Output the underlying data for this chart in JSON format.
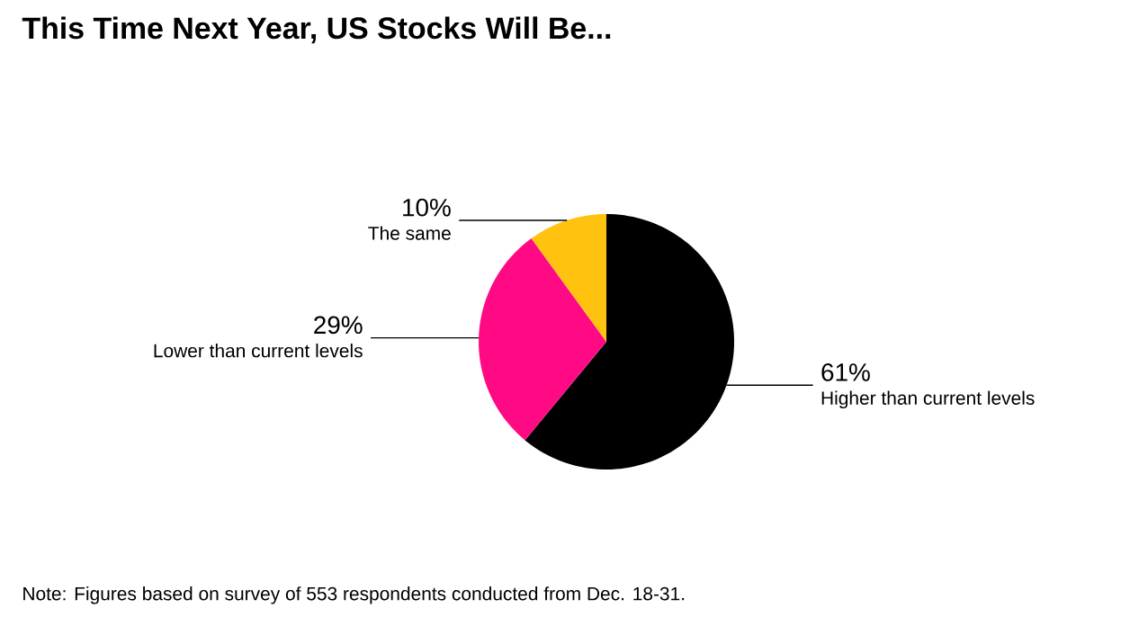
{
  "chart_data": {
    "type": "pie",
    "title": "This Time Next Year, US Stocks Will Be...",
    "categories": [
      "Higher than current levels",
      "Lower than current levels",
      "The same"
    ],
    "values": [
      61,
      29,
      10
    ],
    "value_labels": [
      "61%",
      "29%",
      "10%"
    ],
    "colors": [
      "#000000",
      "#ff0a84",
      "#ffc20e"
    ],
    "annotations": [
      "Note: Figures based on survey of 553 respondents conducted from Dec. 18-31."
    ]
  }
}
